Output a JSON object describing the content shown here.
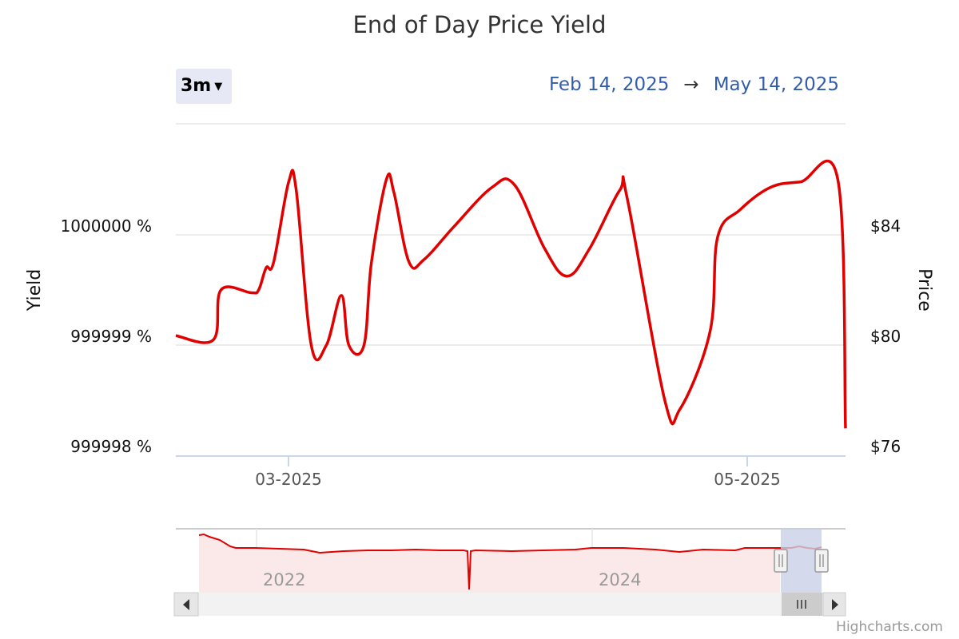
{
  "chart_data": {
    "type": "line",
    "title": "End of Day Price Yield",
    "y_left": {
      "title": "Yield",
      "ticks": [
        "1000000 %",
        "999999 %",
        "999998 %"
      ]
    },
    "y_right": {
      "title": "Price",
      "ticks": [
        "$84",
        "$80",
        "$76"
      ],
      "range": [
        76,
        88
      ]
    },
    "x_ticks": [
      "03-2025",
      "05-2025"
    ],
    "x_range": [
      "2025-02-14",
      "2025-05-14"
    ],
    "series": [
      {
        "color": "#e00000",
        "points": [
          [
            "2025-02-14",
            80.35
          ],
          [
            "2025-02-19",
            80.2
          ],
          [
            "2025-02-20",
            82.0
          ],
          [
            "2025-02-24",
            81.9
          ],
          [
            "2025-02-25",
            82.0
          ],
          [
            "2025-02-26",
            82.8
          ],
          [
            "2025-02-27",
            83.0
          ],
          [
            "2025-03-01",
            85.9
          ],
          [
            "2025-03-02",
            85.6
          ],
          [
            "2025-03-04",
            80.0
          ],
          [
            "2025-03-06",
            80.0
          ],
          [
            "2025-03-08",
            81.8
          ],
          [
            "2025-03-09",
            80.0
          ],
          [
            "2025-03-11",
            80.0
          ],
          [
            "2025-03-12",
            83.0
          ],
          [
            "2025-03-14",
            86.0
          ],
          [
            "2025-03-15",
            85.5
          ],
          [
            "2025-03-17",
            83.0
          ],
          [
            "2025-03-19",
            83.1
          ],
          [
            "2025-03-23",
            84.3
          ],
          [
            "2025-03-28",
            85.7
          ],
          [
            "2025-03-31",
            85.8
          ],
          [
            "2025-04-04",
            83.5
          ],
          [
            "2025-04-07",
            82.5
          ],
          [
            "2025-04-10",
            83.5
          ],
          [
            "2025-04-14",
            85.6
          ],
          [
            "2025-04-15",
            85.3
          ],
          [
            "2025-04-20",
            78.0
          ],
          [
            "2025-04-22",
            77.7
          ],
          [
            "2025-04-26",
            80.5
          ],
          [
            "2025-04-27",
            83.9
          ],
          [
            "2025-04-30",
            84.9
          ],
          [
            "2025-05-04",
            85.7
          ],
          [
            "2025-05-08",
            85.9
          ],
          [
            "2025-05-13",
            85.95
          ],
          [
            "2025-05-14",
            77.0
          ]
        ]
      }
    ],
    "navigator": {
      "x_ticks": [
        "2022",
        "2024"
      ],
      "selected_range": [
        "2025-02-14",
        "2025-05-14"
      ]
    }
  },
  "range_selector": {
    "label": "3m"
  },
  "date_range": {
    "from": "Feb 14, 2025",
    "arrow": "→",
    "to": "May 14, 2025"
  },
  "credits": "Highcharts.com",
  "colors": {
    "line": "#e00000",
    "grid": "#e6e6e6",
    "navigator_mask": "#c9cfe6"
  }
}
